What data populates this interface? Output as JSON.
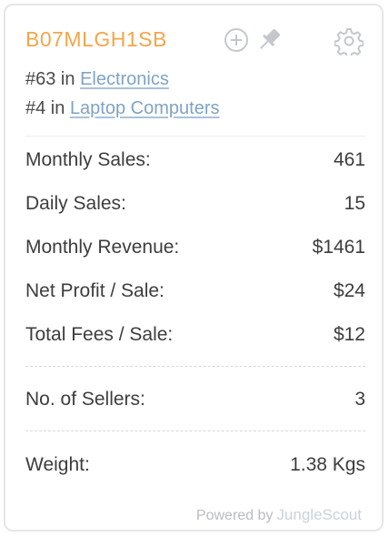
{
  "header": {
    "asin": "B07MLGH1SB",
    "icons": {
      "add": "plus-circle-icon",
      "pin": "pin-icon",
      "settings": "gear-icon"
    }
  },
  "ranks": [
    {
      "prefix": "#63 in",
      "category": "Electronics"
    },
    {
      "prefix": "#4 in",
      "category": "Laptop Computers"
    }
  ],
  "stats": [
    {
      "label": "Monthly Sales:",
      "value": "461"
    },
    {
      "label": "Daily Sales:",
      "value": "15"
    },
    {
      "label": "Monthly Revenue:",
      "value": "$1461"
    },
    {
      "label": "Net Profit / Sale:",
      "value": "$24"
    },
    {
      "label": "Total Fees / Sale:",
      "value": "$12"
    }
  ],
  "sellers": {
    "label": "No. of Sellers:",
    "value": "3"
  },
  "weight": {
    "label": "Weight:",
    "value": "1.38 Kgs"
  },
  "footer": {
    "powered_by": "Powered by",
    "brand": "JungleScout"
  },
  "colors": {
    "asin": "#f4a64a",
    "link": "#7fa3c4",
    "icon": "#c4c8cc"
  }
}
